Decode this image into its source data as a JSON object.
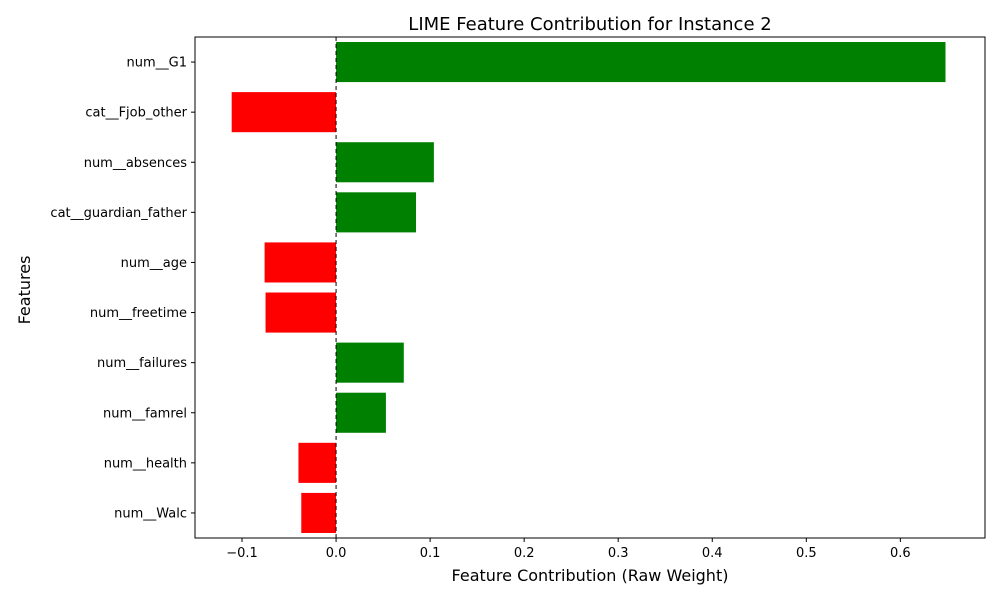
{
  "chart_data": {
    "type": "bar",
    "orientation": "horizontal",
    "title": "LIME Feature Contribution for Instance 2",
    "xlabel": "Feature Contribution (Raw Weight)",
    "ylabel": "Features",
    "xlim": [
      -0.15,
      0.69
    ],
    "xticks": [
      -0.1,
      0.0,
      0.1,
      0.2,
      0.3,
      0.4,
      0.5,
      0.6
    ],
    "xtick_labels": [
      "−0.1",
      "0.0",
      "0.1",
      "0.2",
      "0.3",
      "0.4",
      "0.5",
      "0.6"
    ],
    "categories": [
      "num__G1",
      "cat__Fjob_other",
      "num__absences",
      "cat__guardian_father",
      "num__age",
      "num__freetime",
      "num__failures",
      "num__famrel",
      "num__health",
      "num__Walc"
    ],
    "values": [
      0.648,
      -0.111,
      0.104,
      0.085,
      -0.076,
      -0.075,
      0.072,
      0.053,
      -0.04,
      -0.037
    ],
    "colors": {
      "positive": "#008000",
      "negative": "#ff0000"
    },
    "reference_line": {
      "x": 0,
      "style": "dashed",
      "color": "#000000"
    },
    "grid": false,
    "legend": "none"
  }
}
